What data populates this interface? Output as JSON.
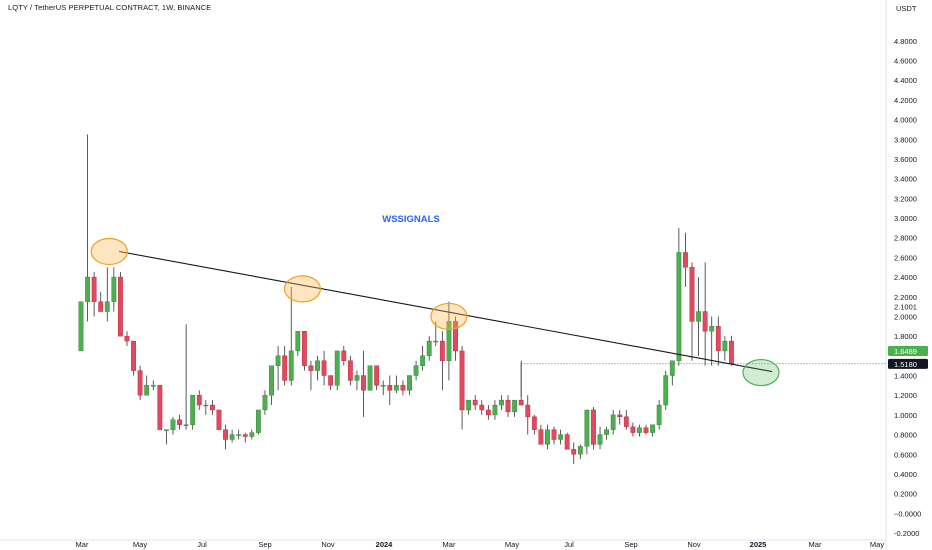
{
  "header": {
    "title": "LQTY / TetherUS PERPETUAL CONTRACT, 1W, BINANCE",
    "currency": "USDT"
  },
  "chart_data": {
    "type": "candlestick",
    "title": "LQTY / TetherUS PERPETUAL CONTRACT, 1W, BINANCE",
    "watermark": "WSSIGNALS",
    "ylim": [
      -0.2,
      4.9
    ],
    "y_ticks": [
      -0.2,
      -0.0,
      0.2,
      0.4,
      0.6,
      0.8,
      1.0,
      1.2,
      1.4,
      1.6,
      1.8,
      2.0,
      2.2,
      2.4,
      2.6,
      2.8,
      3.0,
      3.2,
      3.4,
      3.6,
      3.8,
      4.0,
      4.2,
      4.4,
      4.6,
      4.8
    ],
    "y_tick_labels": [
      "-0.2000",
      "−0.0000",
      "0.2000",
      "0.4000",
      "0.6000",
      "0.8000",
      "1.0000",
      "1.2000",
      "1.4000",
      "1.6000",
      "1.8000",
      "2.0000",
      "2.2000",
      "2.4000",
      "2.6000",
      "2.8000",
      "3.0000",
      "3.2000",
      "3.4000",
      "3.6000",
      "3.8000",
      "4.0000",
      "4.2000",
      "4.4000",
      "4.6000",
      "4.8000"
    ],
    "x_labels": [
      "Mar",
      "May",
      "Jul",
      "Sep",
      "Nov",
      "2024",
      "Mar",
      "May",
      "Jul",
      "Sep",
      "Nov",
      "2025",
      "Mar",
      "May"
    ],
    "price_badges": [
      {
        "value": 2.1001,
        "label": "2.1001",
        "style": "plain"
      },
      {
        "value": 1.6489,
        "label": "1.6489",
        "style": "green"
      },
      {
        "value": 1.518,
        "label": "1.5180",
        "style": "black"
      }
    ],
    "trendline": {
      "from": [
        5.8,
        2.66
      ],
      "to": [
        105.2,
        1.44
      ]
    },
    "reference_line": {
      "value": 1.52,
      "from_index": 67
    },
    "highlight_circles": [
      {
        "index": 4.3,
        "value": 2.66,
        "color": "orange"
      },
      {
        "index": 33.7,
        "value": 2.28,
        "color": "orange"
      },
      {
        "index": 56.0,
        "value": 2.0,
        "color": "orange"
      },
      {
        "index": 103.5,
        "value": 1.43,
        "color": "green"
      }
    ],
    "colors": {
      "up": "#4caf50",
      "down": "#e04a5c",
      "wick": "#333333",
      "trendline": "#131722"
    },
    "candles": [
      [
        1.65,
        2.15,
        1.65,
        2.15
      ],
      [
        2.15,
        3.85,
        1.95,
        2.4
      ],
      [
        2.4,
        2.45,
        2.0,
        2.15
      ],
      [
        2.15,
        2.25,
        2.05,
        2.05
      ],
      [
        2.05,
        2.5,
        1.95,
        2.15
      ],
      [
        2.15,
        2.5,
        2.05,
        2.4
      ],
      [
        2.4,
        2.45,
        1.8,
        1.8
      ],
      [
        1.8,
        1.85,
        1.7,
        1.75
      ],
      [
        1.75,
        1.75,
        1.4,
        1.45
      ],
      [
        1.45,
        1.5,
        1.15,
        1.2
      ],
      [
        1.2,
        1.4,
        1.2,
        1.3
      ],
      [
        1.3,
        1.35,
        1.25,
        1.3
      ],
      [
        1.3,
        1.3,
        0.85,
        0.85
      ],
      [
        0.85,
        0.85,
        0.7,
        0.85
      ],
      [
        0.85,
        0.98,
        0.8,
        0.95
      ],
      [
        0.95,
        1.0,
        0.85,
        0.9
      ],
      [
        0.9,
        1.92,
        0.85,
        0.9
      ],
      [
        0.9,
        1.2,
        0.85,
        1.2
      ],
      [
        1.2,
        1.25,
        1.05,
        1.1
      ],
      [
        1.1,
        1.15,
        1.0,
        1.1
      ],
      [
        1.1,
        1.15,
        1.0,
        1.05
      ],
      [
        1.05,
        1.05,
        0.85,
        0.85
      ],
      [
        0.85,
        0.9,
        0.65,
        0.75
      ],
      [
        0.75,
        0.85,
        0.72,
        0.8
      ],
      [
        0.8,
        0.85,
        0.75,
        0.8
      ],
      [
        0.8,
        0.82,
        0.72,
        0.78
      ],
      [
        0.78,
        0.85,
        0.75,
        0.82
      ],
      [
        0.82,
        1.05,
        0.8,
        1.05
      ],
      [
        1.05,
        1.25,
        1.0,
        1.2
      ],
      [
        1.2,
        1.5,
        1.1,
        1.5
      ],
      [
        1.5,
        1.7,
        1.25,
        1.6
      ],
      [
        1.6,
        1.7,
        1.3,
        1.35
      ],
      [
        1.35,
        2.3,
        1.3,
        1.65
      ],
      [
        1.65,
        1.85,
        1.6,
        1.85
      ],
      [
        1.85,
        1.85,
        1.45,
        1.5
      ],
      [
        1.5,
        1.55,
        1.25,
        1.45
      ],
      [
        1.45,
        1.6,
        1.35,
        1.55
      ],
      [
        1.55,
        1.65,
        1.3,
        1.4
      ],
      [
        1.4,
        1.4,
        1.25,
        1.3
      ],
      [
        1.3,
        1.65,
        1.25,
        1.65
      ],
      [
        1.65,
        1.7,
        1.5,
        1.55
      ],
      [
        1.55,
        1.6,
        1.3,
        1.35
      ],
      [
        1.35,
        1.45,
        1.25,
        1.4
      ],
      [
        1.4,
        1.65,
        0.98,
        1.25
      ],
      [
        1.25,
        1.5,
        1.25,
        1.5
      ],
      [
        1.5,
        1.5,
        1.25,
        1.3
      ],
      [
        1.3,
        1.35,
        1.2,
        1.3
      ],
      [
        1.3,
        1.4,
        1.1,
        1.25
      ],
      [
        1.25,
        1.4,
        1.22,
        1.3
      ],
      [
        1.3,
        1.35,
        1.2,
        1.25
      ],
      [
        1.25,
        1.4,
        1.2,
        1.4
      ],
      [
        1.4,
        1.55,
        1.35,
        1.5
      ],
      [
        1.5,
        1.7,
        1.45,
        1.6
      ],
      [
        1.6,
        1.8,
        1.55,
        1.75
      ],
      [
        1.75,
        1.95,
        1.7,
        1.75
      ],
      [
        1.75,
        1.85,
        1.25,
        1.55
      ],
      [
        1.55,
        2.15,
        1.35,
        1.95
      ],
      [
        1.95,
        2.0,
        1.55,
        1.65
      ],
      [
        1.65,
        1.7,
        0.85,
        1.05
      ],
      [
        1.05,
        1.15,
        1.0,
        1.15
      ],
      [
        1.15,
        1.2,
        1.05,
        1.1
      ],
      [
        1.1,
        1.15,
        1.0,
        1.05
      ],
      [
        1.05,
        1.1,
        0.95,
        1.0
      ],
      [
        1.0,
        1.15,
        0.95,
        1.1
      ],
      [
        1.1,
        1.2,
        1.05,
        1.15
      ],
      [
        1.15,
        1.2,
        0.98,
        1.03
      ],
      [
        1.03,
        1.15,
        0.98,
        1.15
      ],
      [
        1.15,
        1.55,
        1.1,
        1.1
      ],
      [
        1.1,
        1.2,
        0.8,
        0.98
      ],
      [
        0.98,
        1.0,
        0.8,
        0.85
      ],
      [
        0.85,
        0.9,
        0.7,
        0.7
      ],
      [
        0.7,
        0.9,
        0.65,
        0.85
      ],
      [
        0.85,
        0.88,
        0.7,
        0.75
      ],
      [
        0.75,
        0.85,
        0.7,
        0.8
      ],
      [
        0.8,
        0.82,
        0.65,
        0.65
      ],
      [
        0.65,
        0.72,
        0.5,
        0.6
      ],
      [
        0.6,
        0.7,
        0.55,
        0.68
      ],
      [
        0.68,
        1.05,
        0.6,
        1.05
      ],
      [
        1.05,
        1.08,
        0.65,
        0.7
      ],
      [
        0.7,
        0.88,
        0.65,
        0.8
      ],
      [
        0.8,
        0.88,
        0.75,
        0.85
      ],
      [
        0.85,
        1.05,
        0.8,
        1.0
      ],
      [
        1.0,
        1.05,
        0.9,
        0.98
      ],
      [
        0.98,
        1.05,
        0.85,
        0.88
      ],
      [
        0.88,
        0.92,
        0.78,
        0.82
      ],
      [
        0.82,
        0.9,
        0.78,
        0.87
      ],
      [
        0.87,
        0.9,
        0.8,
        0.82
      ],
      [
        0.82,
        0.9,
        0.78,
        0.9
      ],
      [
        0.9,
        1.15,
        0.85,
        1.1
      ],
      [
        1.1,
        1.45,
        1.05,
        1.4
      ],
      [
        1.4,
        1.55,
        1.3,
        1.55
      ],
      [
        1.55,
        2.9,
        1.5,
        2.65
      ],
      [
        2.65,
        2.85,
        2.3,
        2.5
      ],
      [
        2.5,
        2.55,
        1.55,
        1.95
      ],
      [
        1.95,
        2.4,
        1.6,
        2.05
      ],
      [
        2.05,
        2.55,
        1.5,
        1.85
      ],
      [
        1.85,
        2.0,
        1.5,
        1.9
      ],
      [
        1.9,
        2.0,
        1.5,
        1.65
      ],
      [
        1.65,
        1.8,
        1.55,
        1.75
      ],
      [
        1.75,
        1.8,
        1.5,
        1.52
      ]
    ]
  }
}
